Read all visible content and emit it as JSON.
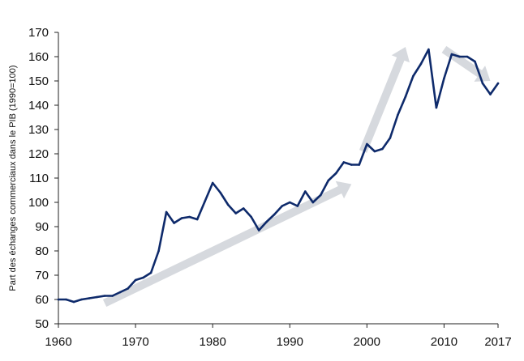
{
  "chart_data": {
    "type": "line",
    "title": "",
    "xlabel": "",
    "ylabel": "Part des échanges commerciaux dans le PIB (1990=100)",
    "xlim": [
      1960,
      2017
    ],
    "ylim": [
      50,
      170
    ],
    "x_ticks": [
      1960,
      1970,
      1980,
      1990,
      2000,
      2010,
      2017
    ],
    "y_ticks": [
      50,
      60,
      70,
      80,
      90,
      100,
      110,
      120,
      130,
      140,
      150,
      160,
      170
    ],
    "grid": false,
    "legend": "none",
    "colors": {
      "line": "#0e2a6b",
      "arrow": "#d6d9de",
      "axis": "#222222"
    },
    "series": [
      {
        "x": [
          1960,
          1961,
          1962,
          1963,
          1964,
          1965,
          1966,
          1967,
          1968,
          1969,
          1970,
          1971,
          1972,
          1973,
          1974,
          1975,
          1976,
          1977,
          1978,
          1979,
          1980,
          1981,
          1982,
          1983,
          1984,
          1985,
          1986,
          1987,
          1988,
          1989,
          1990,
          1991,
          1992,
          1993,
          1994,
          1995,
          1996,
          1997,
          1998,
          1999,
          2000,
          2001,
          2002,
          2003,
          2004,
          2005,
          2006,
          2007,
          2008,
          2009,
          2010,
          2011,
          2012,
          2013,
          2014,
          2015,
          2016,
          2017
        ],
        "values": [
          60,
          60,
          59,
          60,
          60.5,
          61,
          61.5,
          61.5,
          63,
          64.5,
          68,
          69,
          71,
          80,
          96,
          91.5,
          93.5,
          94,
          93,
          100.5,
          108,
          104,
          99,
          95.5,
          97.5,
          94,
          88.5,
          92,
          95,
          98.5,
          100,
          98.5,
          104.5,
          100,
          103,
          109,
          112,
          116.5,
          115.5,
          115.5,
          124,
          121,
          122,
          126.5,
          136,
          143.5,
          152,
          157,
          163,
          139,
          151,
          161,
          160,
          160,
          158,
          149,
          144.5,
          149
        ]
      }
    ],
    "trend_arrows": [
      {
        "from": [
          1966,
          58.5
        ],
        "to": [
          1998,
          107.5
        ]
      },
      {
        "from": [
          1999.5,
          121
        ],
        "to": [
          2005,
          164
        ]
      },
      {
        "from": [
          2010,
          163
        ],
        "to": [
          2016,
          150
        ]
      }
    ]
  }
}
